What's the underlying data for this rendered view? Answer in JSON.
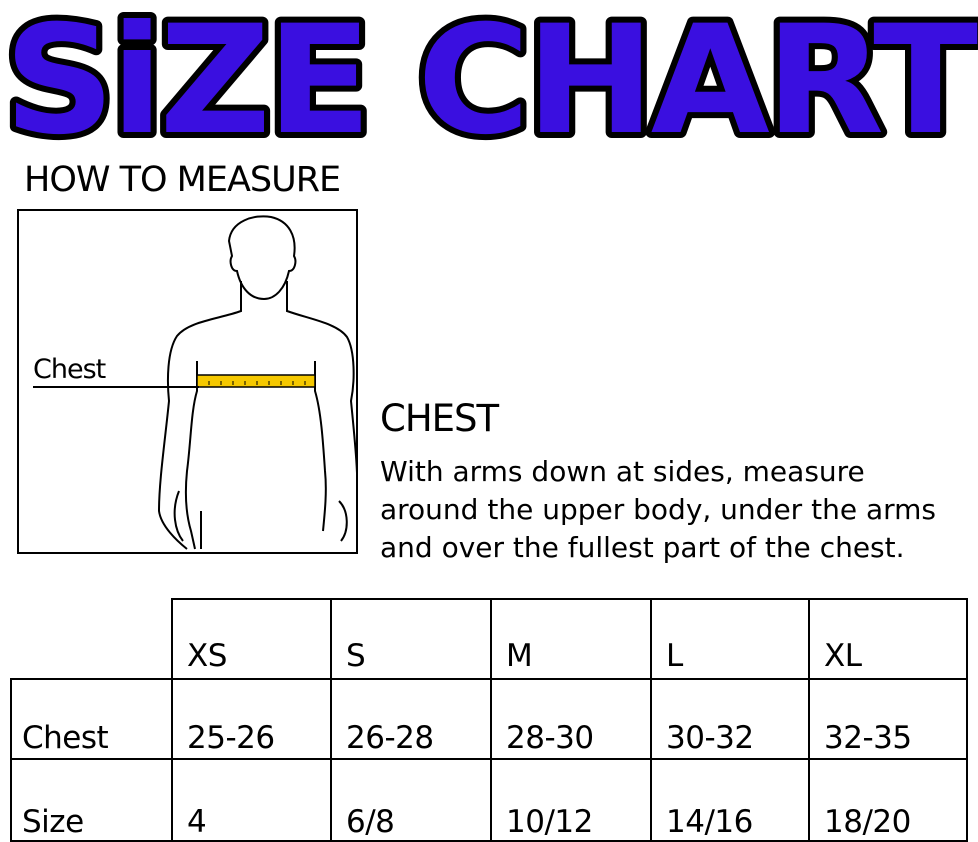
{
  "title": "SiZE CHART",
  "title_color": "#3a0fe0",
  "how_to_measure": "HOW TO MEASURE",
  "figure": {
    "chest_label": "Chest",
    "tape_color": "#f5c800"
  },
  "measure": {
    "heading": "CHEST",
    "lines": [
      "With arms down at sides, measure",
      "around the upper body, under the arms",
      "and over the fullest part of the chest."
    ]
  },
  "table": {
    "headers": [
      "XS",
      "S",
      "M",
      "L",
      "XL"
    ],
    "rows": [
      {
        "label": "Chest",
        "values": [
          "25-26",
          "26-28",
          "28-30",
          "30-32",
          "32-35"
        ]
      },
      {
        "label": "Size",
        "values": [
          "4",
          "6/8",
          "10/12",
          "14/16",
          "18/20"
        ]
      }
    ]
  }
}
